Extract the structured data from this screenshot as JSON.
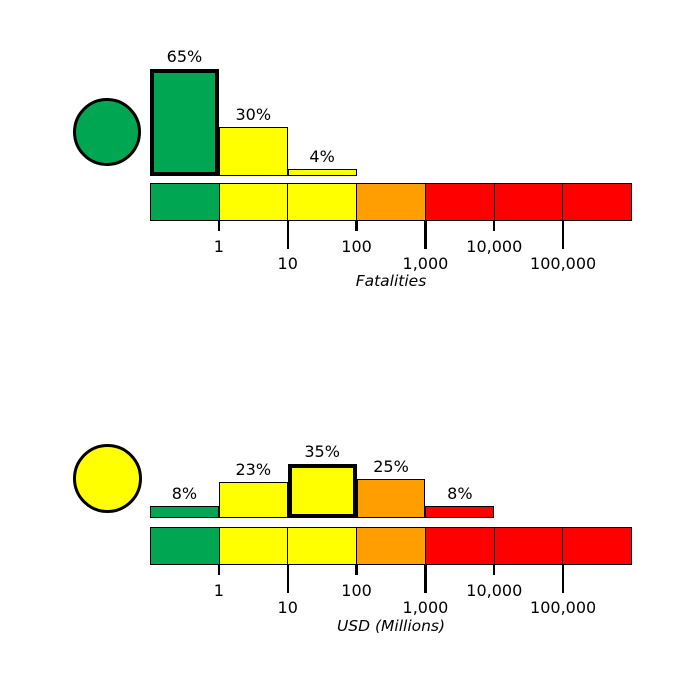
{
  "colors": {
    "green": "#00a651",
    "yellow": "#ffff00",
    "orange": "#ff9e00",
    "red": "#ff0000",
    "outline": "#000000",
    "background": "#ffffff"
  },
  "chart_data": [
    {
      "type": "bar",
      "title": "",
      "xlabel": "Fatalities",
      "x_scale": "log",
      "axis_ticks": [
        {
          "label": "1",
          "row": 1
        },
        {
          "label": "10",
          "row": 2
        },
        {
          "label": "100",
          "row": 1
        },
        {
          "label": "1,000",
          "row": 2
        },
        {
          "label": "10,000",
          "row": 1
        },
        {
          "label": "100,000",
          "row": 2
        }
      ],
      "risk_scale_segments": [
        "green",
        "yellow",
        "yellow",
        "orange",
        "red",
        "red",
        "red"
      ],
      "indicator_circle_color": "green",
      "bars": [
        {
          "segment": 0,
          "bin": "<1",
          "pct": 65,
          "label": "65%",
          "color": "green",
          "highlighted": true
        },
        {
          "segment": 1,
          "bin": "1-10",
          "pct": 30,
          "label": "30%",
          "color": "yellow",
          "highlighted": false
        },
        {
          "segment": 2,
          "bin": "10-100",
          "pct": 4,
          "label": "4%",
          "color": "yellow",
          "highlighted": false
        }
      ]
    },
    {
      "type": "bar",
      "title": "",
      "xlabel": "USD (Millions)",
      "x_scale": "log",
      "axis_ticks": [
        {
          "label": "1",
          "row": 1
        },
        {
          "label": "10",
          "row": 2
        },
        {
          "label": "100",
          "row": 1
        },
        {
          "label": "1,000",
          "row": 2
        },
        {
          "label": "10,000",
          "row": 1
        },
        {
          "label": "100,000",
          "row": 2
        }
      ],
      "risk_scale_segments": [
        "green",
        "yellow",
        "yellow",
        "orange",
        "red",
        "red",
        "red"
      ],
      "indicator_circle_color": "yellow",
      "bars": [
        {
          "segment": 0,
          "bin": "<1",
          "pct": 8,
          "label": "8%",
          "color": "green",
          "highlighted": false
        },
        {
          "segment": 1,
          "bin": "1-10",
          "pct": 23,
          "label": "23%",
          "color": "yellow",
          "highlighted": false
        },
        {
          "segment": 2,
          "bin": "10-100",
          "pct": 35,
          "label": "35%",
          "color": "yellow",
          "highlighted": true
        },
        {
          "segment": 3,
          "bin": "100-1,000",
          "pct": 25,
          "label": "25%",
          "color": "orange",
          "highlighted": false
        },
        {
          "segment": 4,
          "bin": "1,000-10,000",
          "pct": 8,
          "label": "8%",
          "color": "red",
          "highlighted": false
        }
      ]
    }
  ]
}
